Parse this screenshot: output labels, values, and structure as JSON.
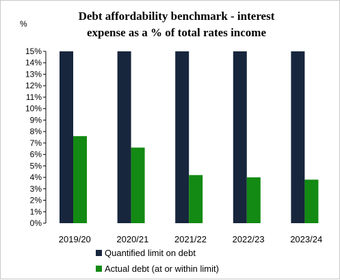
{
  "chart_data": {
    "type": "bar",
    "title_line1": "Debt affordability benchmark - interest",
    "title_line2": "expense as a % of total rates income",
    "unit_label": "%",
    "categories": [
      "2019/20",
      "2020/21",
      "2021/22",
      "2022/23",
      "2023/24"
    ],
    "series": [
      {
        "name": "Quantified limit on debt",
        "color": "#17263d",
        "values": [
          15,
          15,
          15,
          15,
          15
        ]
      },
      {
        "name": "Actual debt (at or within limit)",
        "color": "#138a13",
        "values": [
          7.6,
          6.6,
          4.2,
          4.0,
          3.8
        ]
      }
    ],
    "ylim": [
      0,
      15
    ],
    "y_ticks": [
      "0%",
      "1%",
      "2%",
      "3%",
      "4%",
      "5%",
      "6%",
      "7%",
      "8%",
      "9%",
      "10%",
      "11%",
      "12%",
      "13%",
      "14%",
      "15%"
    ],
    "legend_position": "bottom",
    "grid": false
  }
}
